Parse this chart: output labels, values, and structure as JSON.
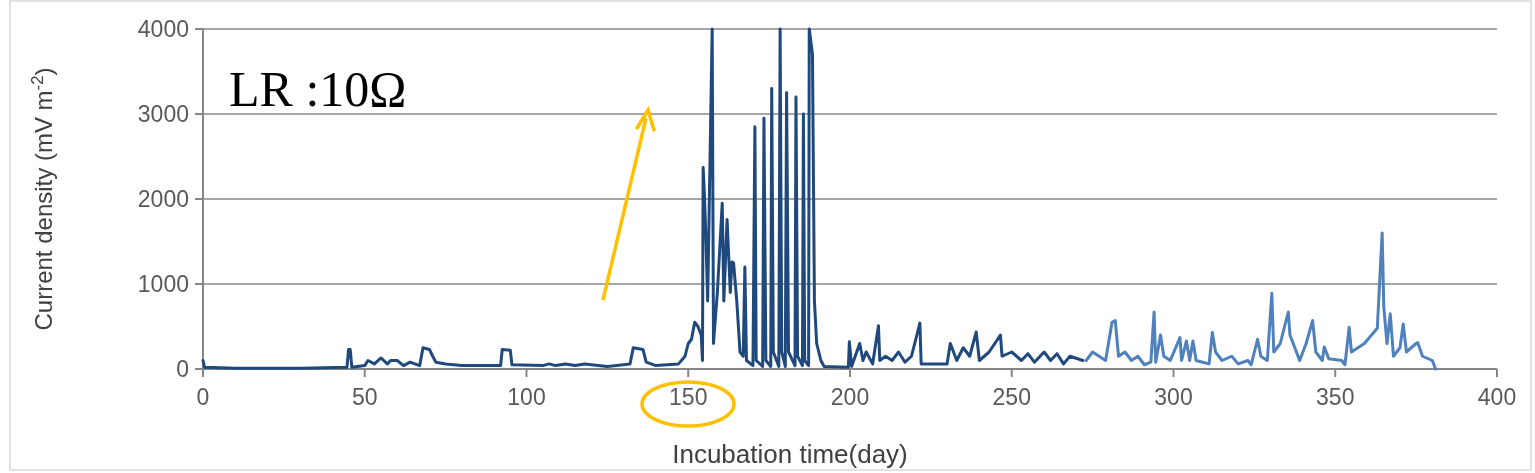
{
  "chart_data": {
    "type": "line",
    "xlabel": "Incubation time(day)",
    "ylabel": "Current density (mV m$^{-2}$)",
    "annotations": [
      "LR :10Ω"
    ],
    "xlim": [
      0,
      400
    ],
    "xticks": [
      0,
      50,
      100,
      150,
      200,
      250,
      300,
      350,
      400
    ],
    "ylim": [
      0,
      4000
    ],
    "yticks": [
      0,
      1000,
      2000,
      3000,
      4000
    ],
    "grid": "y",
    "marker": "none",
    "line_style": "solid",
    "series": [
      {
        "color": "#1f497d",
        "x": [
          0,
          0.5,
          10,
          20,
          30,
          44.5,
          45,
          45.5,
          46,
          50,
          51,
          53,
          55,
          57,
          58,
          60,
          62,
          64,
          67,
          68,
          70,
          71,
          72,
          75,
          80,
          92,
          92.5,
          95,
          95.5,
          105,
          107,
          109,
          112,
          115,
          118,
          125,
          132,
          133,
          136,
          137,
          140,
          147,
          149,
          150,
          151,
          152,
          153,
          154,
          154.4,
          154.6,
          155,
          155.5,
          156,
          157.4,
          157.8,
          159,
          160.5,
          161,
          162,
          163,
          163.5,
          164,
          165,
          166,
          167,
          167.5,
          168,
          170,
          170.6,
          171,
          173,
          173.4,
          174,
          175.5,
          175.8,
          176.3,
          178,
          178.4,
          178.9,
          180,
          180.4,
          181,
          183,
          183.3,
          183.8,
          185.3,
          185.6,
          186,
          187.2,
          187.4,
          188.4,
          189,
          189.7,
          191,
          192,
          199.5,
          199.8,
          200.5,
          203,
          204,
          205,
          207,
          208.8,
          209.2,
          211,
          213,
          215,
          217,
          219,
          221.6,
          222,
          224,
          230,
          231,
          233,
          235,
          237,
          239,
          240,
          243,
          246.5,
          247,
          250,
          253,
          255,
          257,
          260,
          262,
          264,
          266,
          268,
          272
        ],
        "values": [
          100,
          20,
          10,
          10,
          10,
          20,
          230,
          230,
          20,
          40,
          100,
          60,
          130,
          60,
          100,
          100,
          40,
          80,
          40,
          250,
          230,
          150,
          80,
          60,
          40,
          40,
          230,
          220,
          50,
          40,
          60,
          40,
          60,
          40,
          60,
          30,
          60,
          250,
          230,
          80,
          40,
          60,
          150,
          300,
          350,
          550,
          500,
          400,
          100,
          2370,
          2050,
          1500,
          800,
          4000,
          300,
          900,
          1950,
          800,
          1760,
          900,
          1260,
          1250,
          800,
          200,
          150,
          1200,
          100,
          40,
          2850,
          100,
          30,
          2950,
          100,
          30,
          3300,
          200,
          30,
          4000,
          200,
          30,
          3250,
          200,
          40,
          3200,
          150,
          40,
          3000,
          100,
          40,
          4000,
          3700,
          800,
          300,
          100,
          30,
          20,
          320,
          30,
          300,
          100,
          200,
          60,
          510,
          100,
          150,
          100,
          200,
          80,
          150,
          540,
          60,
          60,
          60,
          300,
          100,
          250,
          150,
          435,
          100,
          200,
          400,
          150,
          200,
          100,
          180,
          80,
          200,
          100,
          180,
          60,
          150,
          100
        ]
      },
      {
        "color": "#4f81bd",
        "x": [
          273,
          275,
          277,
          279,
          281,
          282,
          283,
          285,
          287,
          289,
          291,
          293,
          294,
          294.5,
          296,
          297,
          299,
          302,
          302.5,
          304,
          305,
          306,
          307,
          309,
          311,
          312,
          313,
          315,
          318,
          320,
          323,
          324,
          326,
          327,
          329,
          330.4,
          331,
          333,
          335,
          335.5,
          336,
          338,
          339,
          341,
          343,
          344,
          346,
          346.6,
          348,
          352,
          353,
          354.3,
          355,
          359,
          363,
          364.5,
          365,
          366,
          367,
          368,
          370,
          371,
          372,
          375,
          375.5,
          377,
          380,
          381
        ],
        "values": [
          100,
          200,
          150,
          100,
          550,
          570,
          150,
          200,
          100,
          150,
          50,
          80,
          670,
          80,
          400,
          150,
          100,
          370,
          100,
          330,
          100,
          330,
          100,
          80,
          60,
          430,
          200,
          100,
          150,
          60,
          100,
          50,
          350,
          150,
          100,
          890,
          200,
          300,
          600,
          670,
          400,
          200,
          100,
          300,
          570,
          200,
          100,
          260,
          120,
          100,
          50,
          490,
          200,
          300,
          480,
          1600,
          730,
          300,
          650,
          150,
          250,
          530,
          200,
          300,
          310,
          150,
          100,
          0
        ]
      }
    ]
  }
}
